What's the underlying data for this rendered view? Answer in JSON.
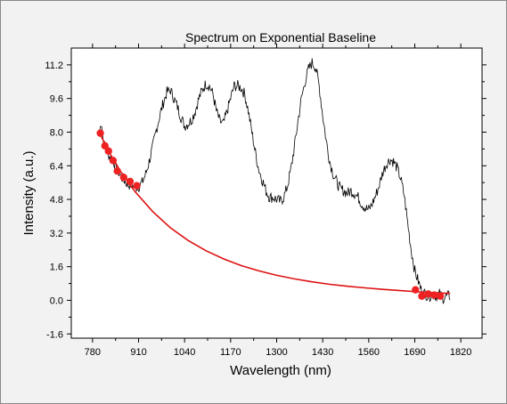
{
  "chart_data": {
    "type": "line",
    "title": "Spectrum on Exponential Baseline",
    "xlabel": "Wavelength (nm)",
    "ylabel": "Intensity (a.u.)",
    "xlim": [
      720,
      1880
    ],
    "ylim": [
      -1.8,
      12.0
    ],
    "x_ticks": [
      780,
      910,
      1040,
      1170,
      1300,
      1430,
      1560,
      1690,
      1820
    ],
    "y_ticks": [
      -1.6,
      0.0,
      1.6,
      3.2,
      4.8,
      6.4,
      8.0,
      9.6,
      11.2
    ],
    "x_tick_labels": [
      "780",
      "910",
      "1040",
      "1170",
      "1300",
      "1430",
      "1560",
      "1690",
      "1820"
    ],
    "y_tick_labels": [
      "-1.6",
      "0.0",
      "1.6",
      "3.2",
      "4.8",
      "6.4",
      "8.0",
      "9.6",
      "11.2"
    ],
    "grid": false,
    "colors": {
      "spectrum": "#000000",
      "baseline": "#dd1111",
      "anchors": "#ee2222",
      "plot_bg": "#ffffff",
      "frame_bg": "#f2f2f2"
    },
    "series": [
      {
        "kind": "spectrum-line",
        "x": [
          800,
          805,
          810,
          815,
          820,
          830,
          840,
          850,
          860,
          870,
          880,
          890,
          900,
          910,
          920,
          930,
          940,
          950,
          960,
          970,
          980,
          990,
          1000,
          1010,
          1020,
          1030,
          1040,
          1050,
          1060,
          1070,
          1080,
          1090,
          1100,
          1110,
          1120,
          1130,
          1140,
          1150,
          1160,
          1170,
          1180,
          1190,
          1200,
          1210,
          1220,
          1230,
          1240,
          1250,
          1260,
          1270,
          1280,
          1290,
          1300,
          1310,
          1320,
          1330,
          1340,
          1350,
          1360,
          1370,
          1380,
          1390,
          1400,
          1410,
          1420,
          1430,
          1440,
          1450,
          1460,
          1470,
          1480,
          1490,
          1500,
          1510,
          1520,
          1530,
          1540,
          1550,
          1560,
          1570,
          1580,
          1590,
          1600,
          1610,
          1620,
          1630,
          1640,
          1650,
          1660,
          1670,
          1680,
          1690,
          1700,
          1710,
          1720,
          1730,
          1740,
          1750,
          1760,
          1770,
          1780,
          1790
        ],
        "y": [
          8.0,
          8.6,
          7.6,
          7.3,
          7.1,
          6.8,
          6.6,
          6.2,
          5.9,
          5.7,
          5.5,
          5.5,
          5.4,
          5.4,
          5.6,
          6.0,
          6.6,
          7.3,
          8.1,
          8.8,
          9.4,
          9.9,
          10.0,
          9.6,
          9.2,
          8.7,
          8.3,
          8.4,
          8.6,
          9.0,
          9.6,
          10.0,
          10.3,
          10.2,
          9.8,
          9.0,
          8.5,
          8.4,
          9.0,
          9.6,
          10.2,
          10.2,
          10.1,
          9.8,
          9.0,
          8.0,
          7.0,
          6.2,
          5.7,
          5.2,
          4.9,
          4.9,
          4.8,
          4.7,
          4.9,
          5.4,
          6.2,
          7.3,
          8.5,
          9.6,
          10.4,
          11.0,
          11.3,
          11.1,
          10.2,
          8.8,
          7.6,
          6.6,
          6.0,
          5.6,
          5.3,
          5.2,
          5.1,
          5.2,
          5.1,
          4.9,
          4.6,
          4.4,
          4.3,
          4.6,
          5.0,
          5.5,
          6.1,
          6.5,
          6.7,
          6.6,
          6.3,
          5.8,
          5.0,
          3.7,
          2.4,
          1.4,
          0.9,
          0.4,
          0.3,
          0.2,
          0.3,
          0.2,
          0.3,
          0.1,
          0.2,
          0.2
        ]
      },
      {
        "kind": "baseline-curve",
        "x": [
          800,
          830,
          860,
          900,
          950,
          1000,
          1050,
          1100,
          1150,
          1200,
          1250,
          1300,
          1350,
          1400,
          1450,
          1500,
          1550,
          1600,
          1650,
          1700,
          1750,
          1790
        ],
        "y": [
          7.95,
          6.96,
          6.11,
          5.17,
          4.22,
          3.45,
          2.85,
          2.36,
          1.97,
          1.65,
          1.4,
          1.19,
          1.02,
          0.88,
          0.76,
          0.67,
          0.59,
          0.52,
          0.46,
          0.4,
          0.36,
          0.33
        ]
      },
      {
        "kind": "anchor-points",
        "x": [
          802,
          815,
          825,
          838,
          850,
          868,
          886,
          905,
          1692,
          1710,
          1728,
          1745,
          1762
        ],
        "y": [
          7.95,
          7.35,
          7.1,
          6.65,
          6.15,
          5.85,
          5.65,
          5.45,
          0.5,
          0.2,
          0.3,
          0.25,
          0.2
        ]
      }
    ]
  }
}
